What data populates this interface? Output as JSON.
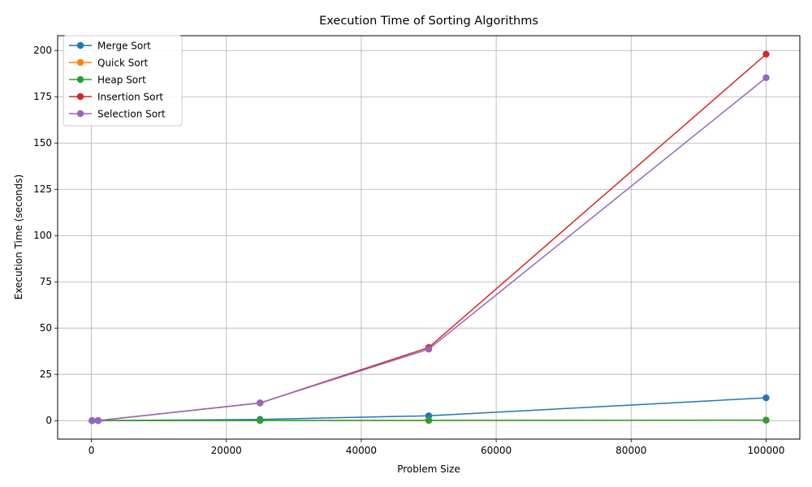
{
  "chart_data": {
    "type": "line",
    "title": "Execution Time of Sorting Algorithms",
    "xlabel": "Problem Size",
    "ylabel": "Execution Time (seconds)",
    "xlim": [
      -5000,
      105000
    ],
    "ylim": [
      -10,
      208
    ],
    "xticks": [
      0,
      20000,
      40000,
      60000,
      80000,
      100000
    ],
    "yticks": [
      0,
      25,
      50,
      75,
      100,
      125,
      150,
      175,
      200
    ],
    "grid": true,
    "legend_position": "upper-left",
    "x": [
      100,
      1000,
      25000,
      50000,
      100000
    ],
    "series": [
      {
        "name": "Merge Sort",
        "color": "#1f77b4",
        "values": [
          0.0005,
          0.005,
          0.65,
          2.6,
          12.3
        ]
      },
      {
        "name": "Quick Sort",
        "color": "#ff7f0e",
        "values": [
          0.0002,
          0.002,
          0.05,
          0.1,
          0.2
        ]
      },
      {
        "name": "Heap Sort",
        "color": "#2ca02c",
        "values": [
          0.0003,
          0.003,
          0.06,
          0.12,
          0.25
        ]
      },
      {
        "name": "Insertion Sort",
        "color": "#d62728",
        "values": [
          0.001,
          0.02,
          9.5,
          39.5,
          198.0
        ]
      },
      {
        "name": "Selection Sort",
        "color": "#9467bd",
        "values": [
          0.001,
          0.02,
          9.6,
          38.6,
          185.3
        ]
      }
    ]
  }
}
